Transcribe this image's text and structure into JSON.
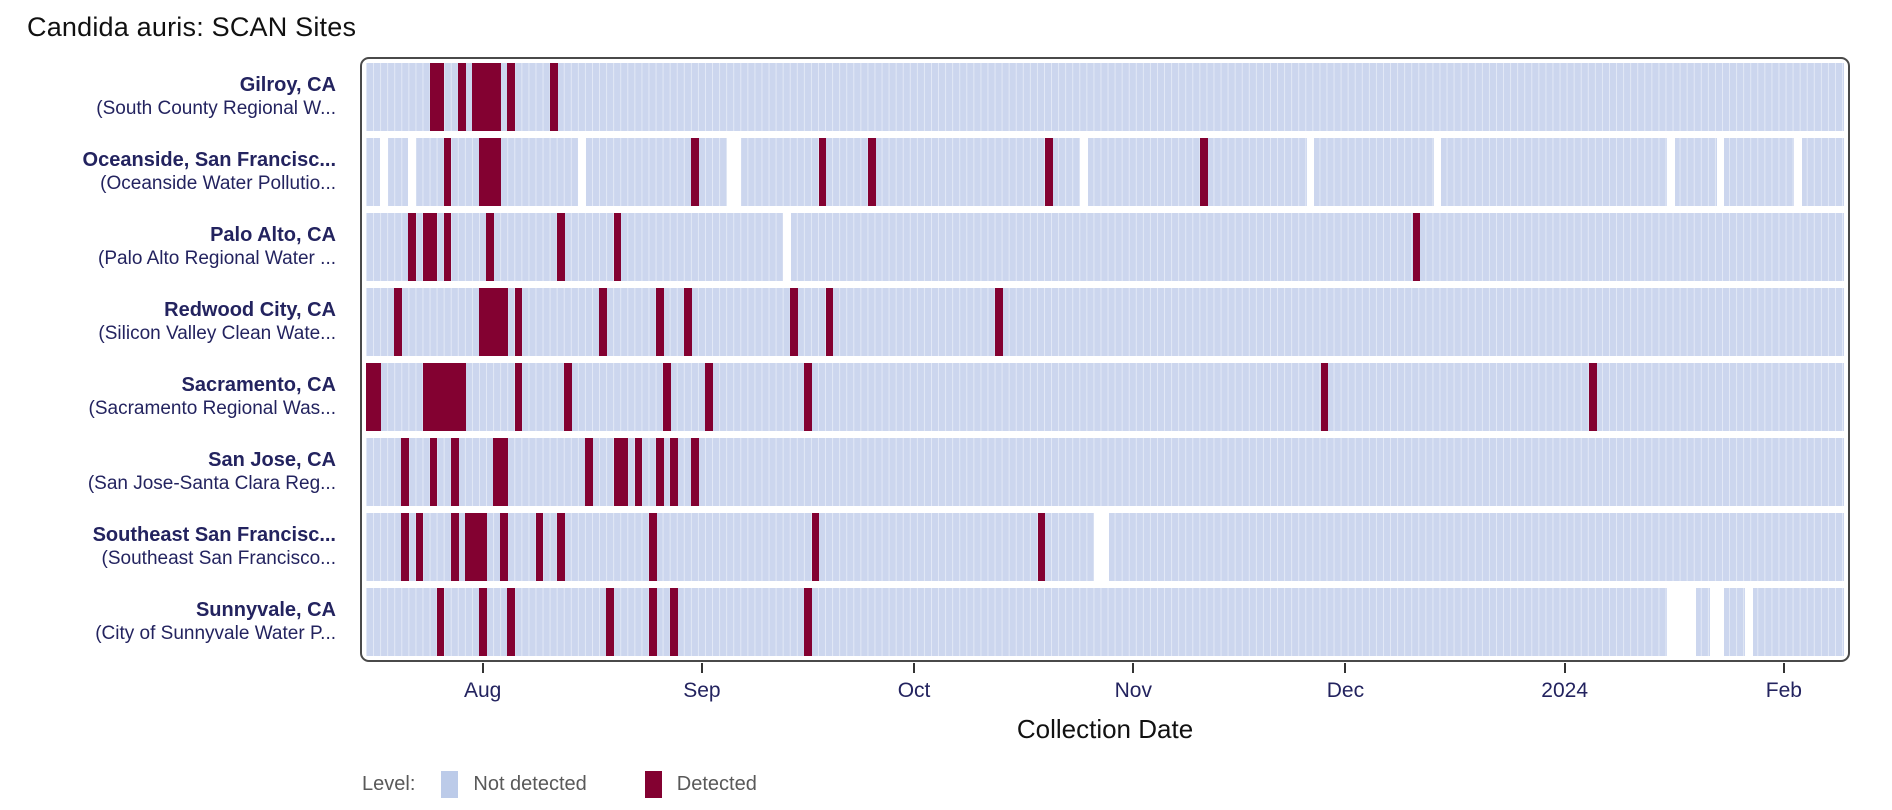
{
  "chart_data": {
    "type": "heatmap",
    "title": "Candida auris: SCAN Sites",
    "xlabel": "Collection Date",
    "n_days": 209,
    "x_axis_note": "daily cells from mid-July 2023 through early Feb 2024; ticks at month starts",
    "ticks": [
      {
        "label": "Aug",
        "day": 16
      },
      {
        "label": "Sep",
        "day": 47
      },
      {
        "label": "Oct",
        "day": 77
      },
      {
        "label": "Nov",
        "day": 108
      },
      {
        "label": "Dec",
        "day": 138
      },
      {
        "label": "2024",
        "day": 169
      },
      {
        "label": "Feb",
        "day": 200
      }
    ],
    "legend": {
      "title": "Level:",
      "items": [
        {
          "label": "Not detected",
          "color": "#bccbe9"
        },
        {
          "label": "Detected",
          "color": "#830131"
        }
      ]
    },
    "colors": {
      "not_detected_cell": "#ccd6ee",
      "cell_separator": "#e3e9f6",
      "detected": "#830131",
      "no_data": "#ffffff",
      "site_label_text": "#23235f",
      "axis_text": "#23235f",
      "panel_border": "#4a4a4a",
      "legend_text": "#595959"
    },
    "series": [
      {
        "name": "Gilroy, CA",
        "facility": "(South County Regional W...",
        "detected_days": [
          9,
          10,
          13,
          15,
          16,
          17,
          18,
          20,
          26
        ],
        "no_data_days": []
      },
      {
        "name": "Oceanside, San Francisc...",
        "facility": "(Oceanside Water Pollutio...",
        "detected_days": [
          11,
          16,
          17,
          18,
          46,
          64,
          71,
          96,
          118
        ],
        "no_data_days": [
          2,
          6,
          30,
          51,
          52,
          101,
          133,
          151,
          184,
          191,
          202
        ]
      },
      {
        "name": "Palo Alto, CA",
        "facility": "(Palo Alto Regional Water ...",
        "detected_days": [
          6,
          8,
          9,
          11,
          17,
          27,
          35,
          148
        ],
        "no_data_days": [
          59
        ]
      },
      {
        "name": "Redwood City, CA",
        "facility": "(Silicon Valley Clean Wate...",
        "detected_days": [
          4,
          16,
          17,
          18,
          19,
          21,
          33,
          41,
          45,
          60,
          65,
          89
        ],
        "no_data_days": []
      },
      {
        "name": "Sacramento, CA",
        "facility": "(Sacramento Regional Was...",
        "detected_days": [
          0,
          1,
          8,
          9,
          10,
          11,
          12,
          13,
          21,
          28,
          42,
          48,
          62,
          135,
          173
        ],
        "no_data_days": []
      },
      {
        "name": "San Jose, CA",
        "facility": "(San Jose-Santa Clara Reg...",
        "detected_days": [
          5,
          9,
          12,
          18,
          19,
          31,
          35,
          36,
          38,
          41,
          43,
          46
        ],
        "no_data_days": []
      },
      {
        "name": "Southeast San Francisc...",
        "facility": "(Southeast San Francisco...",
        "detected_days": [
          5,
          7,
          12,
          14,
          15,
          16,
          19,
          24,
          27,
          40,
          63,
          95
        ],
        "no_data_days": [
          103,
          104
        ]
      },
      {
        "name": "Sunnyvale, CA",
        "facility": "(City of Sunnyvale Water P...",
        "detected_days": [
          10,
          16,
          20,
          34,
          40,
          43,
          62
        ],
        "no_data_days": [
          184,
          185,
          186,
          187,
          190,
          191,
          195
        ]
      }
    ]
  }
}
